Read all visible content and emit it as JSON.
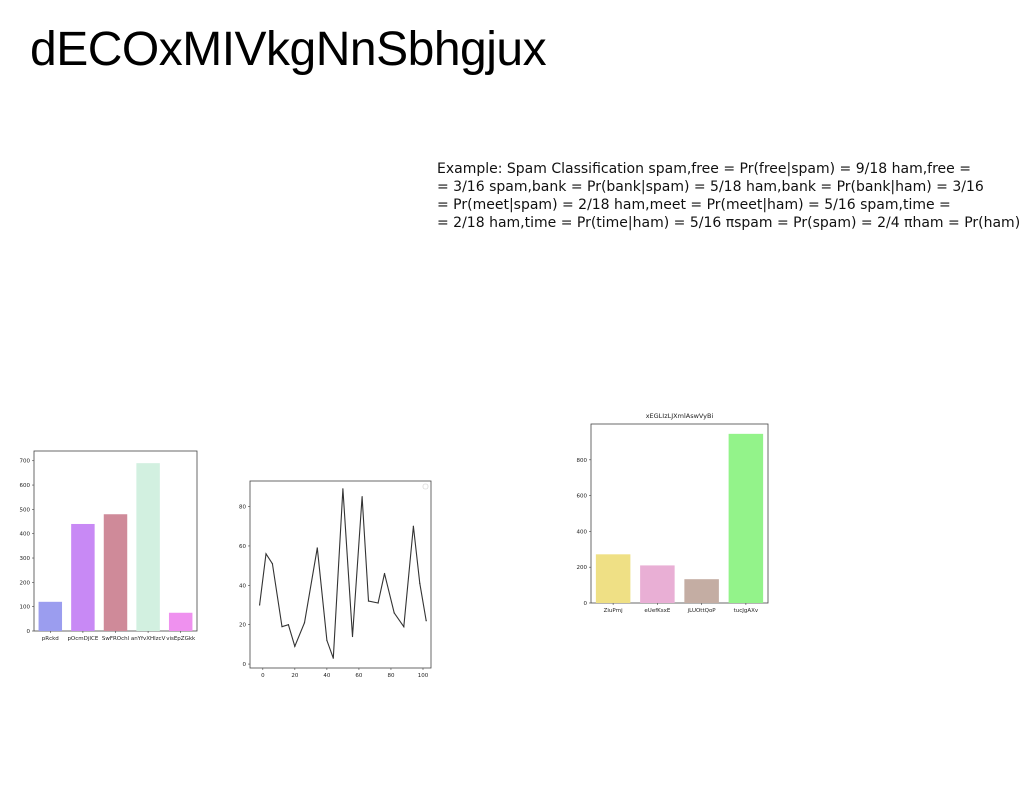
{
  "title": "dECOxMIVkgNnSbhgjux",
  "body_lines": [
    "Example: Spam Classification \u001espam,free = Pr(free|spam) = 9/18 \u001eham,free =",
    "= 3/16 \u001espam,bank = Pr(bank|spam) = 5/18 \u001eham,bank = Pr(bank|ham) = 3/16",
    "= Pr(meet|spam) = 2/18 \u001eham,meet = Pr(meet|ham) = 5/16 \u001espam,time =",
    "= 2/18 \u001eham,time = Pr(time|ham) = 5/16 πspam = Pr(spam) = 2/4 πham = Pr(ham)"
  ],
  "chart_data": [
    {
      "type": "bar",
      "title": "",
      "xlabel": "",
      "ylabel": "",
      "categories": [
        "pRckd",
        "pOcmDjICE",
        "SwFROchl",
        "anYfvXHlzcV",
        "visEpZGkk"
      ],
      "values": [
        120,
        440,
        480,
        690,
        75
      ],
      "colors": [
        "#9b9def",
        "#c889f5",
        "#cf8a99",
        "#d2f0e0",
        "#ef91ef"
      ],
      "ylim": [
        0,
        740
      ],
      "yticks": [
        0,
        100,
        200,
        300,
        400,
        500,
        600,
        700
      ],
      "grid": false
    },
    {
      "type": "line",
      "title": "",
      "xlabel": "",
      "ylabel": "",
      "x": [
        -2,
        2,
        6,
        12,
        16,
        20,
        26,
        34,
        40,
        44,
        50,
        56,
        62,
        66,
        72,
        76,
        82,
        88,
        94,
        98,
        102
      ],
      "y": [
        30,
        56,
        51,
        19,
        20,
        9,
        21,
        59,
        12,
        3,
        89,
        14,
        85,
        32,
        31,
        46,
        26,
        19,
        70,
        41,
        22
      ],
      "color": "#333333",
      "xlim": [
        -8,
        105
      ],
      "ylim": [
        -2,
        93
      ],
      "xticks": [
        0,
        20,
        40,
        60,
        80,
        100
      ],
      "yticks": [
        0,
        20,
        40,
        60,
        80
      ],
      "grid": false
    },
    {
      "type": "bar",
      "title": "xEGLIzLJXmlAswVyBi",
      "xlabel": "",
      "ylabel": "",
      "categories": [
        "ZiuPmj",
        "eUefKsxE",
        "jLUOttQoP",
        "tucJgAXv"
      ],
      "values": [
        272,
        210,
        133,
        945
      ],
      "colors": [
        "#efe085",
        "#e9afd5",
        "#c4ada3",
        "#93f38a"
      ],
      "ylim": [
        0,
        1000
      ],
      "yticks": [
        0,
        200,
        400,
        600,
        800
      ],
      "grid": false
    }
  ]
}
